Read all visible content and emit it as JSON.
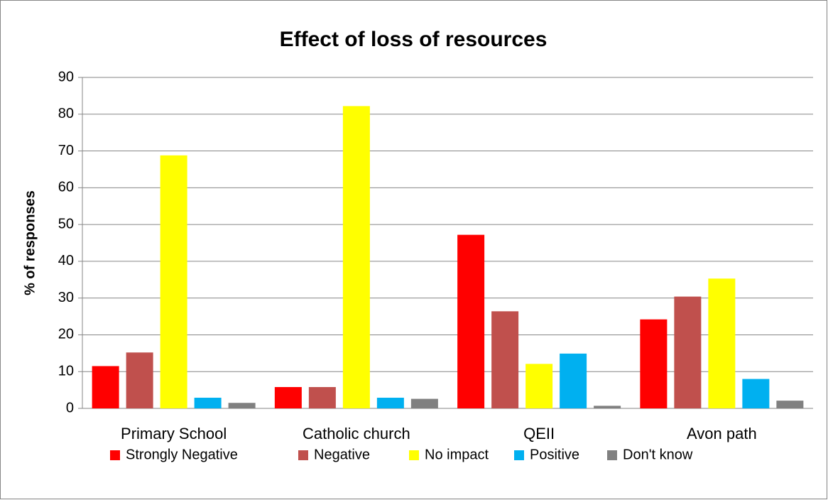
{
  "chart_data": {
    "type": "bar",
    "title": "Effect of loss of resources",
    "y_label": "% of responses",
    "categories": [
      "Primary School",
      "Catholic church",
      "QEII",
      "Avon path"
    ],
    "series": [
      {
        "name": "Strongly Negative",
        "color": "#ff0000",
        "values": [
          11.5,
          5.8,
          47.2,
          24.2
        ]
      },
      {
        "name": "Negative",
        "color": "#c0504d",
        "values": [
          15.2,
          5.8,
          26.4,
          30.4
        ]
      },
      {
        "name": "No impact",
        "color": "#ffff00",
        "values": [
          68.8,
          82.2,
          12.1,
          35.3
        ]
      },
      {
        "name": "Positive",
        "color": "#00b0f0",
        "values": [
          2.9,
          2.9,
          14.9,
          8.0
        ]
      },
      {
        "name": "Don't know",
        "color": "#808080",
        "values": [
          1.5,
          2.6,
          0.7,
          2.1
        ]
      }
    ],
    "ylim": [
      0,
      90
    ],
    "yticks": [
      0,
      10,
      20,
      30,
      40,
      50,
      60,
      70,
      80,
      90
    ],
    "grid": true,
    "legend": "bottom"
  }
}
